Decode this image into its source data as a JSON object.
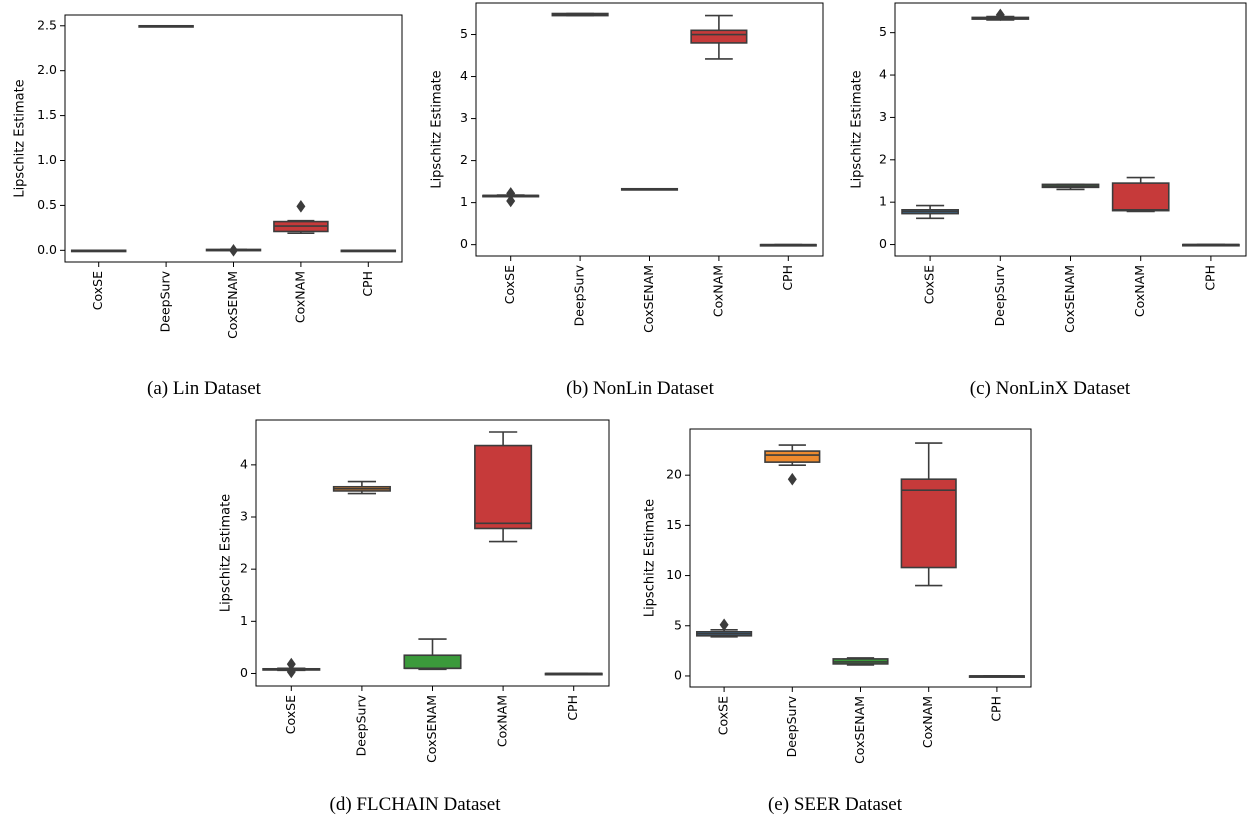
{
  "figure": {
    "panels": [
      {
        "id": "a",
        "caption": "(a) Lin Dataset"
      },
      {
        "id": "b",
        "caption": "(b) NonLin Dataset"
      },
      {
        "id": "c",
        "caption": "(c) NonLinX Dataset"
      },
      {
        "id": "d",
        "caption": "(d) FLCHAIN Dataset"
      },
      {
        "id": "e",
        "caption": "(e) SEER Dataset"
      }
    ]
  },
  "colors": {
    "CoxSE": "#3b6e96",
    "DeepSurv": "#ee8a2e",
    "CoxSENAM": "#3b9a3b",
    "CoxNAM": "#c63a3a",
    "CPH": "#8b64b5",
    "edge": "#3c3c3c"
  },
  "chart_data": [
    {
      "type": "box",
      "title": "",
      "xlabel": "",
      "ylabel": "Lipschitz Estimate",
      "categories": [
        "CoxSE",
        "DeepSurv",
        "CoxSENAM",
        "CoxNAM",
        "CPH"
      ],
      "yticks": [
        0.0,
        0.5,
        1.0,
        1.5,
        2.0,
        2.5
      ],
      "ytick_labels": [
        "0.0",
        "0.5",
        "1.0",
        "1.5",
        "2.0",
        "2.5"
      ],
      "ylim": [
        -0.13,
        2.62
      ],
      "grid": false,
      "boxes": [
        {
          "min": 0.0,
          "q1": 0.0,
          "median": 0.0,
          "q3": 0.0,
          "max": 0.0,
          "outliers": []
        },
        {
          "min": 2.49,
          "q1": 2.49,
          "median": 2.49,
          "q3": 2.5,
          "max": 2.5,
          "outliers": []
        },
        {
          "min": 0.0,
          "q1": 0.0,
          "median": 0.0,
          "q3": 0.01,
          "max": 0.01,
          "outliers": [
            0.0
          ]
        },
        {
          "min": 0.19,
          "q1": 0.21,
          "median": 0.27,
          "q3": 0.32,
          "max": 0.33,
          "outliers": [
            0.49
          ]
        },
        {
          "min": 0.0,
          "q1": 0.0,
          "median": 0.0,
          "q3": 0.0,
          "max": 0.0,
          "outliers": []
        }
      ]
    },
    {
      "type": "box",
      "title": "",
      "xlabel": "",
      "ylabel": "Lipschitz Estimate",
      "categories": [
        "CoxSE",
        "DeepSurv",
        "CoxSENAM",
        "CoxNAM",
        "CPH"
      ],
      "yticks": [
        0,
        1,
        2,
        3,
        4,
        5
      ],
      "ytick_labels": [
        "0",
        "1",
        "2",
        "3",
        "4",
        "5"
      ],
      "ylim": [
        -0.27,
        5.75
      ],
      "grid": false,
      "boxes": [
        {
          "min": 1.16,
          "q1": 1.16,
          "median": 1.17,
          "q3": 1.17,
          "max": 1.18,
          "outliers": [
            1.04,
            1.22
          ]
        },
        {
          "min": 5.45,
          "q1": 5.45,
          "median": 5.47,
          "q3": 5.5,
          "max": 5.5,
          "outliers": []
        },
        {
          "min": 1.32,
          "q1": 1.32,
          "median": 1.32,
          "q3": 1.33,
          "max": 1.33,
          "outliers": []
        },
        {
          "min": 4.42,
          "q1": 4.8,
          "median": 5.0,
          "q3": 5.1,
          "max": 5.45,
          "outliers": []
        },
        {
          "min": 0.0,
          "q1": 0.0,
          "median": 0.0,
          "q3": 0.0,
          "max": 0.0,
          "outliers": []
        }
      ]
    },
    {
      "type": "box",
      "title": "",
      "xlabel": "",
      "ylabel": "Lipschitz Estimate",
      "categories": [
        "CoxSE",
        "DeepSurv",
        "CoxSENAM",
        "CoxNAM",
        "CPH"
      ],
      "yticks": [
        0,
        1,
        2,
        3,
        4,
        5
      ],
      "ytick_labels": [
        "0",
        "1",
        "2",
        "3",
        "4",
        "5"
      ],
      "ylim": [
        -0.27,
        5.7
      ],
      "grid": false,
      "boxes": [
        {
          "min": 0.62,
          "q1": 0.73,
          "median": 0.78,
          "q3": 0.82,
          "max": 0.92,
          "outliers": []
        },
        {
          "min": 5.3,
          "q1": 5.32,
          "median": 5.34,
          "q3": 5.36,
          "max": 5.38,
          "outliers": [
            5.42
          ]
        },
        {
          "min": 1.3,
          "q1": 1.35,
          "median": 1.38,
          "q3": 1.42,
          "max": 1.42,
          "outliers": []
        },
        {
          "min": 0.78,
          "q1": 0.8,
          "median": 0.82,
          "q3": 1.45,
          "max": 1.58,
          "outliers": []
        },
        {
          "min": 0.0,
          "q1": 0.0,
          "median": 0.0,
          "q3": 0.0,
          "max": 0.0,
          "outliers": []
        }
      ]
    },
    {
      "type": "box",
      "title": "",
      "xlabel": "",
      "ylabel": "Lipschitz Estimate",
      "categories": [
        "CoxSE",
        "DeepSurv",
        "CoxSENAM",
        "CoxNAM",
        "CPH"
      ],
      "yticks": [
        0,
        1,
        2,
        3,
        4
      ],
      "ytick_labels": [
        "0",
        "1",
        "2",
        "3",
        "4"
      ],
      "ylim": [
        -0.24,
        4.86
      ],
      "grid": false,
      "boxes": [
        {
          "min": 0.06,
          "q1": 0.07,
          "median": 0.08,
          "q3": 0.09,
          "max": 0.1,
          "outliers": [
            0.03,
            0.18
          ]
        },
        {
          "min": 3.45,
          "q1": 3.5,
          "median": 3.54,
          "q3": 3.58,
          "max": 3.68,
          "outliers": []
        },
        {
          "min": 0.08,
          "q1": 0.1,
          "median": 0.1,
          "q3": 0.35,
          "max": 0.66,
          "outliers": []
        },
        {
          "min": 2.53,
          "q1": 2.78,
          "median": 2.88,
          "q3": 4.37,
          "max": 4.63,
          "outliers": []
        },
        {
          "min": 0.0,
          "q1": 0.0,
          "median": 0.0,
          "q3": 0.0,
          "max": 0.0,
          "outliers": []
        }
      ]
    },
    {
      "type": "box",
      "title": "",
      "xlabel": "",
      "ylabel": "Lipschitz Estimate",
      "categories": [
        "CoxSE",
        "DeepSurv",
        "CoxSENAM",
        "CoxNAM",
        "CPH"
      ],
      "yticks": [
        0,
        5,
        10,
        15,
        20
      ],
      "ytick_labels": [
        "0",
        "5",
        "10",
        "15",
        "20"
      ],
      "ylim": [
        -1.1,
        24.6
      ],
      "grid": false,
      "boxes": [
        {
          "min": 3.9,
          "q1": 4.0,
          "median": 4.2,
          "q3": 4.4,
          "max": 4.6,
          "outliers": [
            5.1
          ]
        },
        {
          "min": 21.0,
          "q1": 21.3,
          "median": 22.0,
          "q3": 22.4,
          "max": 23.0,
          "outliers": [
            19.6
          ]
        },
        {
          "min": 1.1,
          "q1": 1.2,
          "median": 1.4,
          "q3": 1.7,
          "max": 1.8,
          "outliers": []
        },
        {
          "min": 9.0,
          "q1": 10.8,
          "median": 18.5,
          "q3": 19.6,
          "max": 23.2,
          "outliers": []
        },
        {
          "min": 0.0,
          "q1": 0.0,
          "median": 0.0,
          "q3": 0.0,
          "max": 0.0,
          "outliers": []
        }
      ]
    }
  ]
}
